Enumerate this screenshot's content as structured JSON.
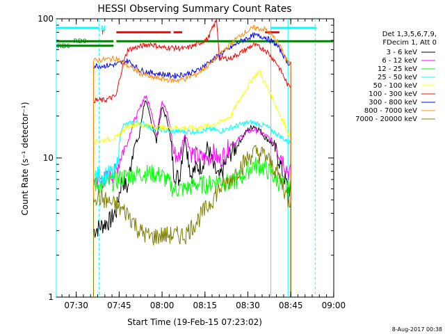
{
  "chart_data": {
    "type": "line",
    "title": "HESSI Observing Summary Count Rates",
    "xlabel": "Start Time (19-Feb-15 07:23:02)",
    "ylabel": "Count Rate (s⁻¹ detector⁻¹)",
    "x_units": "minutes since 07:23:02",
    "xlim": [
      0,
      97
    ],
    "ylim": [
      1,
      100
    ],
    "yscale": "log",
    "x_ticks": [
      {
        "label": "07:30",
        "t": 6.97
      },
      {
        "label": "07:45",
        "t": 21.97
      },
      {
        "label": "08:00",
        "t": 36.97
      },
      {
        "label": "08:15",
        "t": 51.97
      },
      {
        "label": "08:30",
        "t": 66.97
      },
      {
        "label": "08:45",
        "t": 81.97
      },
      {
        "label": "09:00",
        "t": 96.97
      }
    ],
    "y_ticks": [
      {
        "label": "1",
        "v": 1
      },
      {
        "label": "10",
        "v": 10
      },
      {
        "label": "100",
        "v": 100
      }
    ],
    "legend_header": [
      "Det 1,3,5,6,7,9,",
      "FDecim 1, Att 0"
    ],
    "legend_placement": "right",
    "series": [
      {
        "name": "3 - 6 keV",
        "color": "#000000",
        "x": [
          13,
          15,
          17,
          19,
          21,
          23,
          25,
          27,
          29,
          31,
          33,
          35,
          37,
          39,
          41,
          43,
          45,
          47,
          49,
          51,
          53,
          55,
          57,
          59,
          61,
          63,
          65,
          67,
          69,
          71,
          73,
          75,
          77,
          79,
          81
        ],
        "values": [
          3,
          3.2,
          3.4,
          3.6,
          4.2,
          7,
          6,
          12,
          14,
          26,
          19,
          13,
          23,
          18,
          8,
          7,
          14,
          7.5,
          8.5,
          9,
          12,
          8.5,
          7,
          9,
          11,
          12,
          14,
          16,
          17,
          16,
          14,
          13,
          11,
          8,
          6
        ]
      },
      {
        "name": "6 - 12 keV",
        "color": "#ff00ff",
        "x": [
          13,
          15,
          17,
          19,
          21,
          23,
          25,
          27,
          29,
          31,
          33,
          35,
          37,
          39,
          41,
          43,
          45,
          47,
          49,
          51,
          53,
          55,
          57,
          59,
          61,
          63,
          65,
          67,
          69,
          71,
          73,
          75,
          77,
          79,
          81
        ],
        "values": [
          7,
          7,
          7,
          7.5,
          8,
          11,
          13,
          18,
          22,
          28,
          23,
          14,
          26,
          20,
          11,
          10,
          15,
          11,
          10.5,
          10,
          10,
          11,
          9.5,
          11,
          12.5,
          13,
          14.5,
          15.5,
          16,
          15.5,
          14.5,
          13.5,
          12,
          10,
          8
        ]
      },
      {
        "name": "12 - 25 keV",
        "color": "#00ff00",
        "x": [
          13,
          17,
          21,
          25,
          29,
          33,
          37,
          41,
          45,
          49,
          53,
          57,
          61,
          65,
          69,
          73,
          77,
          81
        ],
        "values": [
          6.5,
          6.5,
          7,
          7.5,
          7.8,
          7.8,
          7.5,
          6,
          6,
          6.5,
          6.5,
          7,
          6.5,
          7.5,
          9,
          8.5,
          7,
          6
        ]
      },
      {
        "name": "25 - 50 keV",
        "color": "#00ffff",
        "x": [
          13,
          15,
          17,
          19,
          21,
          23,
          25,
          27,
          29,
          31,
          33,
          35,
          37,
          39,
          41,
          43,
          45,
          47,
          49,
          51,
          53,
          55,
          57,
          59,
          61,
          63,
          65,
          67,
          69,
          71,
          73,
          75,
          77,
          79,
          81
        ],
        "values": [
          7.5,
          7.5,
          7.6,
          7.8,
          8,
          17,
          17.5,
          18,
          18,
          17.5,
          16.5,
          16,
          16,
          15.5,
          15.5,
          15.5,
          15.5,
          15.5,
          15.5,
          15.8,
          16,
          16,
          15.5,
          16,
          16.5,
          17,
          17.5,
          18,
          18,
          17.5,
          17,
          16,
          15,
          14,
          13
        ]
      },
      {
        "name": "50 - 100 keV",
        "color": "#ffff00",
        "x": [
          13,
          17,
          21,
          25,
          29,
          33,
          37,
          41,
          45,
          49,
          53,
          57,
          61,
          65,
          69,
          71,
          73,
          77,
          81
        ],
        "values": [
          13,
          13.5,
          14,
          17,
          17.5,
          17,
          16.5,
          16.5,
          16.5,
          16.5,
          17,
          18,
          20,
          28,
          38,
          42,
          34,
          23,
          15
        ]
      },
      {
        "name": "100 - 300 keV",
        "color": "#ff0000",
        "x": [
          13,
          17,
          19,
          21,
          25,
          29,
          33,
          37,
          41,
          45,
          49,
          53,
          56,
          57,
          61,
          65,
          69,
          73,
          77,
          81
        ],
        "values": [
          26,
          26,
          27,
          28,
          60,
          63,
          66,
          62,
          62,
          61,
          65,
          72,
          97,
          52,
          52,
          58,
          65,
          60,
          48,
          33
        ]
      },
      {
        "name": "300 - 800 keV",
        "color": "#0000ff",
        "x": [
          13,
          17,
          21,
          25,
          29,
          33,
          37,
          41,
          45,
          49,
          53,
          57,
          61,
          65,
          69,
          73,
          77,
          81
        ],
        "values": [
          46,
          46,
          47,
          50,
          43,
          41,
          40,
          39,
          40,
          42,
          48,
          55,
          62,
          70,
          76,
          74,
          65,
          48
        ]
      },
      {
        "name": "800 - 7000 keV",
        "color": "#ff8800",
        "x": [
          13,
          17,
          21,
          25,
          29,
          33,
          37,
          41,
          45,
          49,
          53,
          57,
          61,
          65,
          69,
          73,
          77,
          81
        ],
        "values": [
          50,
          51,
          52,
          46,
          41,
          38,
          37,
          36,
          37,
          40,
          46,
          55,
          66,
          78,
          86,
          84,
          70,
          48
        ]
      },
      {
        "name": "7000 - 20000 keV",
        "color": "#808000",
        "x": [
          13,
          17,
          21,
          25,
          29,
          33,
          37,
          41,
          45,
          49,
          53,
          57,
          61,
          65,
          69,
          73,
          77,
          81
        ],
        "values": [
          5.5,
          5,
          4.5,
          4,
          3,
          2.7,
          2.8,
          2.8,
          2.8,
          3.5,
          4.5,
          6,
          7,
          9,
          11,
          10.5,
          8,
          5
        ]
      }
    ],
    "state_bars": [
      {
        "label": "N",
        "color": "#00ffff",
        "v": 86,
        "segments": [
          [
            0,
            15
          ],
          [
            75,
            91
          ]
        ]
      },
      {
        "label": "F",
        "color": "#ff0000",
        "v": 80,
        "segments": [
          [
            21,
            40
          ],
          [
            41,
            44
          ],
          [
            73,
            78
          ]
        ]
      },
      {
        "label": "RD0",
        "color": "#008000",
        "v": 69,
        "segments": [
          [
            0,
            20
          ],
          [
            21,
            97
          ]
        ]
      },
      {
        "label": "RD6",
        "color": "#008000",
        "v": 64,
        "segments": [
          [
            0,
            20
          ]
        ]
      }
    ],
    "vlines_solid": {
      "color": "#00ffff",
      "t": [
        0,
        75,
        81
      ]
    },
    "vlines_dashed": {
      "color": "#00ffff",
      "t": [
        15,
        90.5
      ]
    },
    "footer": "8-Aug-2017 00:38"
  }
}
